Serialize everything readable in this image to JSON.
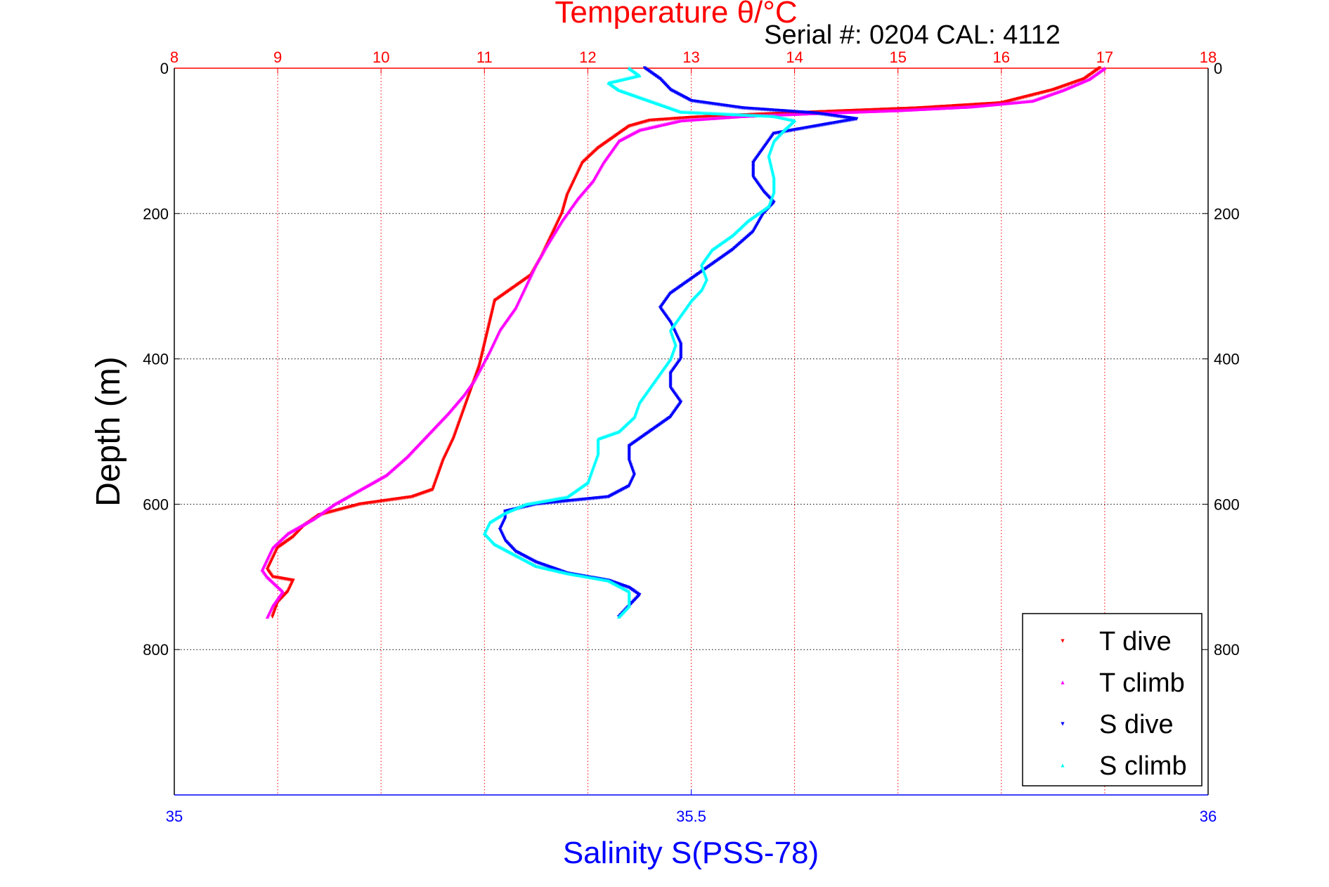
{
  "chart_data": {
    "type": "scatter",
    "title": "Temperature θ/°C",
    "subtitle": "Serial #: 0204  CAL: 4112",
    "ylabel": "Depth (m)",
    "xlabel": "Salinity S(PSS-78)",
    "temperature_axis": {
      "range": [
        8,
        18
      ],
      "ticks": [
        "8",
        "9",
        "10",
        "11",
        "12",
        "13",
        "14",
        "15",
        "16",
        "17",
        "18"
      ],
      "color": "#ff0000"
    },
    "salinity_axis": {
      "range": [
        35,
        36
      ],
      "ticks": [
        "35",
        "35.5",
        "36"
      ],
      "color": "#0000ff"
    },
    "depth_axis": {
      "range": [
        0,
        1000
      ],
      "reversed": true,
      "ticks": [
        "0",
        "200",
        "400",
        "600",
        "800"
      ]
    },
    "grid": true,
    "legend": {
      "position": "bottom-right",
      "entries": [
        "T dive",
        "T climb",
        "S dive",
        "S climb"
      ]
    },
    "series": [
      {
        "name": "T dive",
        "axis": "temperature",
        "color": "#ff0000",
        "points": [
          [
            16.95,
            0
          ],
          [
            16.8,
            15
          ],
          [
            16.5,
            30
          ],
          [
            16.0,
            48
          ],
          [
            15.2,
            55
          ],
          [
            14.3,
            60
          ],
          [
            13.6,
            64
          ],
          [
            13.0,
            68
          ],
          [
            12.6,
            72
          ],
          [
            12.4,
            80
          ],
          [
            12.25,
            95
          ],
          [
            12.1,
            110
          ],
          [
            11.95,
            130
          ],
          [
            11.85,
            160
          ],
          [
            11.8,
            175
          ],
          [
            11.75,
            200
          ],
          [
            11.65,
            230
          ],
          [
            11.55,
            260
          ],
          [
            11.45,
            285
          ],
          [
            11.3,
            300
          ],
          [
            11.1,
            320
          ],
          [
            11.05,
            350
          ],
          [
            11.0,
            380
          ],
          [
            10.95,
            410
          ],
          [
            10.85,
            450
          ],
          [
            10.75,
            490
          ],
          [
            10.7,
            510
          ],
          [
            10.6,
            540
          ],
          [
            10.55,
            560
          ],
          [
            10.5,
            580
          ],
          [
            10.3,
            590
          ],
          [
            9.8,
            600
          ],
          [
            9.4,
            615
          ],
          [
            9.25,
            630
          ],
          [
            9.15,
            645
          ],
          [
            9.0,
            660
          ],
          [
            8.95,
            675
          ],
          [
            8.9,
            690
          ],
          [
            8.95,
            700
          ],
          [
            9.15,
            705
          ],
          [
            9.1,
            720
          ],
          [
            9.0,
            735
          ],
          [
            8.95,
            755
          ]
        ]
      },
      {
        "name": "T climb",
        "axis": "temperature",
        "color": "#ff00ff",
        "points": [
          [
            17.0,
            0
          ],
          [
            16.85,
            15
          ],
          [
            16.6,
            30
          ],
          [
            16.3,
            45
          ],
          [
            15.7,
            53
          ],
          [
            15.0,
            58
          ],
          [
            14.2,
            62
          ],
          [
            13.5,
            66
          ],
          [
            12.9,
            72
          ],
          [
            12.5,
            85
          ],
          [
            12.3,
            100
          ],
          [
            12.15,
            130
          ],
          [
            12.05,
            155
          ],
          [
            11.9,
            180
          ],
          [
            11.75,
            210
          ],
          [
            11.6,
            245
          ],
          [
            11.5,
            270
          ],
          [
            11.4,
            300
          ],
          [
            11.3,
            330
          ],
          [
            11.15,
            360
          ],
          [
            11.05,
            390
          ],
          [
            10.9,
            430
          ],
          [
            10.8,
            450
          ],
          [
            10.65,
            475
          ],
          [
            10.45,
            505
          ],
          [
            10.25,
            535
          ],
          [
            10.05,
            560
          ],
          [
            9.8,
            580
          ],
          [
            9.55,
            600
          ],
          [
            9.35,
            620
          ],
          [
            9.1,
            640
          ],
          [
            8.95,
            660
          ],
          [
            8.9,
            675
          ],
          [
            8.85,
            690
          ],
          [
            8.9,
            700
          ],
          [
            9.05,
            720
          ],
          [
            8.95,
            740
          ],
          [
            8.9,
            755
          ]
        ]
      },
      {
        "name": "S dive",
        "axis": "salinity",
        "color": "#0000ff",
        "points": [
          [
            35.455,
            0
          ],
          [
            35.47,
            15
          ],
          [
            35.48,
            30
          ],
          [
            35.5,
            45
          ],
          [
            35.55,
            55
          ],
          [
            35.62,
            62
          ],
          [
            35.66,
            70
          ],
          [
            35.62,
            80
          ],
          [
            35.58,
            90
          ],
          [
            35.57,
            110
          ],
          [
            35.56,
            130
          ],
          [
            35.56,
            150
          ],
          [
            35.57,
            170
          ],
          [
            35.58,
            185
          ],
          [
            35.57,
            200
          ],
          [
            35.56,
            225
          ],
          [
            35.54,
            250
          ],
          [
            35.52,
            270
          ],
          [
            35.5,
            290
          ],
          [
            35.48,
            310
          ],
          [
            35.47,
            330
          ],
          [
            35.48,
            350
          ],
          [
            35.49,
            380
          ],
          [
            35.49,
            400
          ],
          [
            35.48,
            420
          ],
          [
            35.48,
            440
          ],
          [
            35.49,
            460
          ],
          [
            35.48,
            480
          ],
          [
            35.46,
            500
          ],
          [
            35.44,
            520
          ],
          [
            35.44,
            540
          ],
          [
            35.445,
            560
          ],
          [
            35.44,
            575
          ],
          [
            35.42,
            590
          ],
          [
            35.35,
            600
          ],
          [
            35.32,
            610
          ],
          [
            35.32,
            620
          ],
          [
            35.315,
            635
          ],
          [
            35.32,
            650
          ],
          [
            35.33,
            665
          ],
          [
            35.35,
            680
          ],
          [
            35.38,
            695
          ],
          [
            35.42,
            705
          ],
          [
            35.44,
            715
          ],
          [
            35.45,
            725
          ],
          [
            35.44,
            740
          ],
          [
            35.43,
            755
          ]
        ]
      },
      {
        "name": "S climb",
        "axis": "salinity",
        "color": "#00ffff",
        "points": [
          [
            35.44,
            0
          ],
          [
            35.45,
            10
          ],
          [
            35.42,
            20
          ],
          [
            35.43,
            30
          ],
          [
            35.45,
            40
          ],
          [
            35.47,
            50
          ],
          [
            35.49,
            60
          ],
          [
            35.58,
            66
          ],
          [
            35.6,
            72
          ],
          [
            35.59,
            85
          ],
          [
            35.58,
            100
          ],
          [
            35.575,
            120
          ],
          [
            35.58,
            150
          ],
          [
            35.58,
            170
          ],
          [
            35.575,
            190
          ],
          [
            35.555,
            210
          ],
          [
            35.54,
            230
          ],
          [
            35.52,
            250
          ],
          [
            35.51,
            270
          ],
          [
            35.515,
            290
          ],
          [
            35.51,
            305
          ],
          [
            35.5,
            320
          ],
          [
            35.49,
            340
          ],
          [
            35.48,
            360
          ],
          [
            35.485,
            380
          ],
          [
            35.48,
            400
          ],
          [
            35.47,
            420
          ],
          [
            35.46,
            440
          ],
          [
            35.45,
            460
          ],
          [
            35.445,
            480
          ],
          [
            35.43,
            500
          ],
          [
            35.41,
            510
          ],
          [
            35.41,
            530
          ],
          [
            35.405,
            550
          ],
          [
            35.4,
            570
          ],
          [
            35.38,
            590
          ],
          [
            35.34,
            600
          ],
          [
            35.32,
            612
          ],
          [
            35.305,
            625
          ],
          [
            35.3,
            640
          ],
          [
            35.31,
            655
          ],
          [
            35.33,
            670
          ],
          [
            35.35,
            685
          ],
          [
            35.38,
            695
          ],
          [
            35.42,
            705
          ],
          [
            35.44,
            720
          ],
          [
            35.44,
            740
          ],
          [
            35.43,
            755
          ]
        ]
      }
    ]
  }
}
